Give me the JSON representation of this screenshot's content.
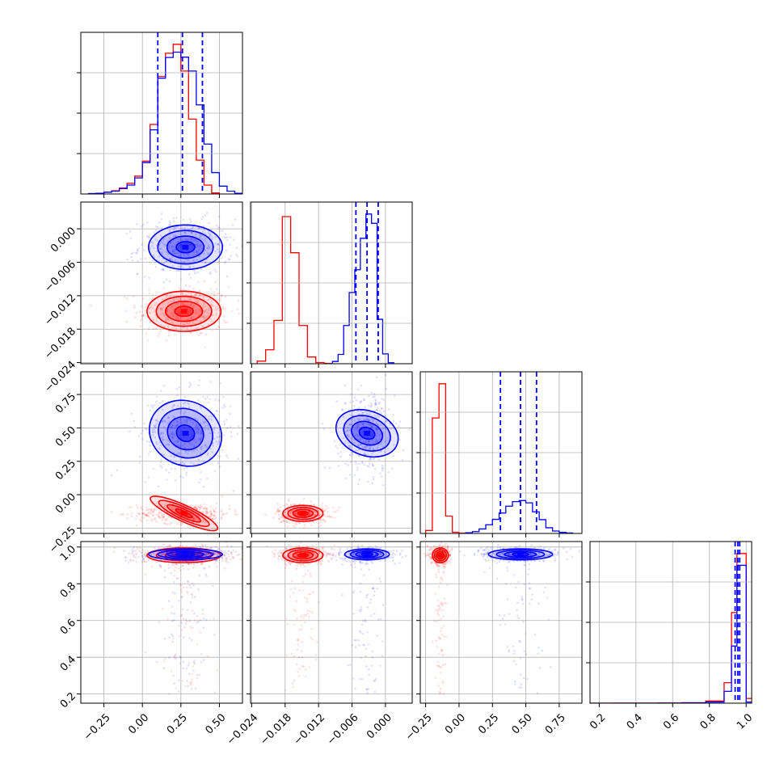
{
  "chart_data": {
    "type": "corner",
    "grid": true,
    "colors": {
      "red_series": "#ff0000",
      "blue_series": "#0000ff"
    },
    "params": [
      {
        "range": [
          -0.4,
          0.65
        ],
        "ticks": [
          "−0.25",
          "0.00",
          "0.25",
          "0.50"
        ],
        "tick_values": [
          -0.25,
          0.0,
          0.25,
          0.5
        ]
      },
      {
        "range": [
          -0.0242,
          0.0048
        ],
        "ticks": [
          "−0.024",
          "−0.018",
          "−0.012",
          "−0.006",
          "0.000"
        ],
        "tick_values": [
          -0.024,
          -0.018,
          -0.012,
          -0.006,
          0.0
        ]
      },
      {
        "range": [
          -0.29,
          0.92
        ],
        "ticks": [
          "−0.25",
          "0.00",
          "0.25",
          "0.50",
          "0.75"
        ],
        "tick_values": [
          -0.25,
          0.0,
          0.25,
          0.5,
          0.75
        ]
      },
      {
        "range": [
          0.15,
          1.03
        ],
        "ticks": [
          "0.2",
          "0.4",
          "0.6",
          "0.8",
          "1.0"
        ],
        "tick_values": [
          0.2,
          0.4,
          0.6,
          0.8,
          1.0
        ]
      }
    ],
    "series": [
      {
        "color": "#ff0000",
        "means": [
          0.27,
          -0.0148,
          -0.14,
          0.955
        ],
        "stds": [
          0.12,
          0.0018,
          0.03,
          0.02
        ],
        "histograms": [
          {
            "edges": [
              -0.35,
              -0.3,
              -0.25,
              -0.2,
              -0.15,
              -0.1,
              -0.05,
              0.0,
              0.05,
              0.1,
              0.15,
              0.2,
              0.25,
              0.3,
              0.35,
              0.4,
              0.45,
              0.5
            ],
            "counts": [
              1,
              2,
              5,
              9,
              17,
              30,
              50,
              92,
              195,
              330,
              395,
              420,
              345,
              210,
              95,
              25,
              3
            ]
          },
          {
            "edges": [
              -0.023,
              -0.0215,
              -0.02,
              -0.0185,
              -0.017,
              -0.0155,
              -0.014,
              -0.0125,
              -0.011,
              -0.0095
            ],
            "counts": [
              25,
              135,
              420,
              1425,
              1075,
              370,
              65,
              12,
              3
            ]
          },
          {
            "edges": [
              -0.25,
              -0.2,
              -0.15,
              -0.1,
              -0.05,
              0.0,
              0.05
            ],
            "counts": [
              50,
              1925,
              2495,
              290,
              20,
              5
            ]
          },
          {
            "edges": [
              0.15,
              0.27,
              0.4,
              0.52,
              0.65,
              0.78,
              0.88,
              0.92,
              0.95,
              1.0,
              1.05
            ],
            "counts": [
              0.1,
              1,
              2,
              4,
              12,
              55,
              520,
              2300,
              3800,
              120
            ]
          }
        ]
      },
      {
        "color": "#0000ff",
        "means": [
          0.28,
          -0.0033,
          0.46,
          0.96
        ],
        "stds": [
          0.12,
          0.002,
          0.12,
          0.015
        ],
        "quantiles": [
          [
            0.1,
            0.26,
            0.39
          ],
          [
            -0.0053,
            -0.0033,
            -0.0013
          ],
          [
            0.31,
            0.46,
            0.58
          ],
          [
            0.94,
            0.955,
            0.965
          ]
        ],
        "histograms": [
          {
            "edges": [
              -0.35,
              -0.3,
              -0.25,
              -0.2,
              -0.15,
              -0.1,
              -0.05,
              0.0,
              0.05,
              0.1,
              0.15,
              0.2,
              0.25,
              0.3,
              0.35,
              0.4,
              0.45,
              0.5,
              0.55,
              0.6,
              0.65
            ],
            "counts": [
              1,
              2,
              5,
              8,
              15,
              25,
              45,
              88,
              180,
              325,
              383,
              398,
              384,
              345,
              250,
              140,
              60,
              22,
              8,
              2
            ]
          },
          {
            "edges": [
              -0.0095,
              -0.0085,
              -0.0075,
              -0.0065,
              -0.0055,
              -0.0045,
              -0.0035,
              -0.0025,
              -0.0015,
              -0.0005,
              0.0005,
              0.0015
            ],
            "counts": [
              22,
              90,
              370,
              690,
              910,
              1215,
              1450,
              1360,
              430,
              95,
              10
            ]
          },
          {
            "edges": [
              0.05,
              0.1,
              0.15,
              0.2,
              0.25,
              0.3,
              0.35,
              0.4,
              0.45,
              0.5,
              0.55,
              0.6,
              0.65,
              0.7,
              0.75,
              0.8,
              0.85
            ],
            "counts": [
              12,
              30,
              75,
              145,
              235,
              340,
              455,
              530,
              548,
              510,
              360,
              230,
              95,
              40,
              18,
              8
            ]
          },
          {
            "edges": [
              0.15,
              0.27,
              0.4,
              0.52,
              0.65,
              0.78,
              0.88,
              0.92,
              0.95,
              1.0,
              1.05
            ],
            "counts": [
              0.1,
              0.2,
              0.5,
              1,
              6,
              30,
              300,
              1450,
              3500,
              30
            ]
          }
        ]
      }
    ]
  }
}
